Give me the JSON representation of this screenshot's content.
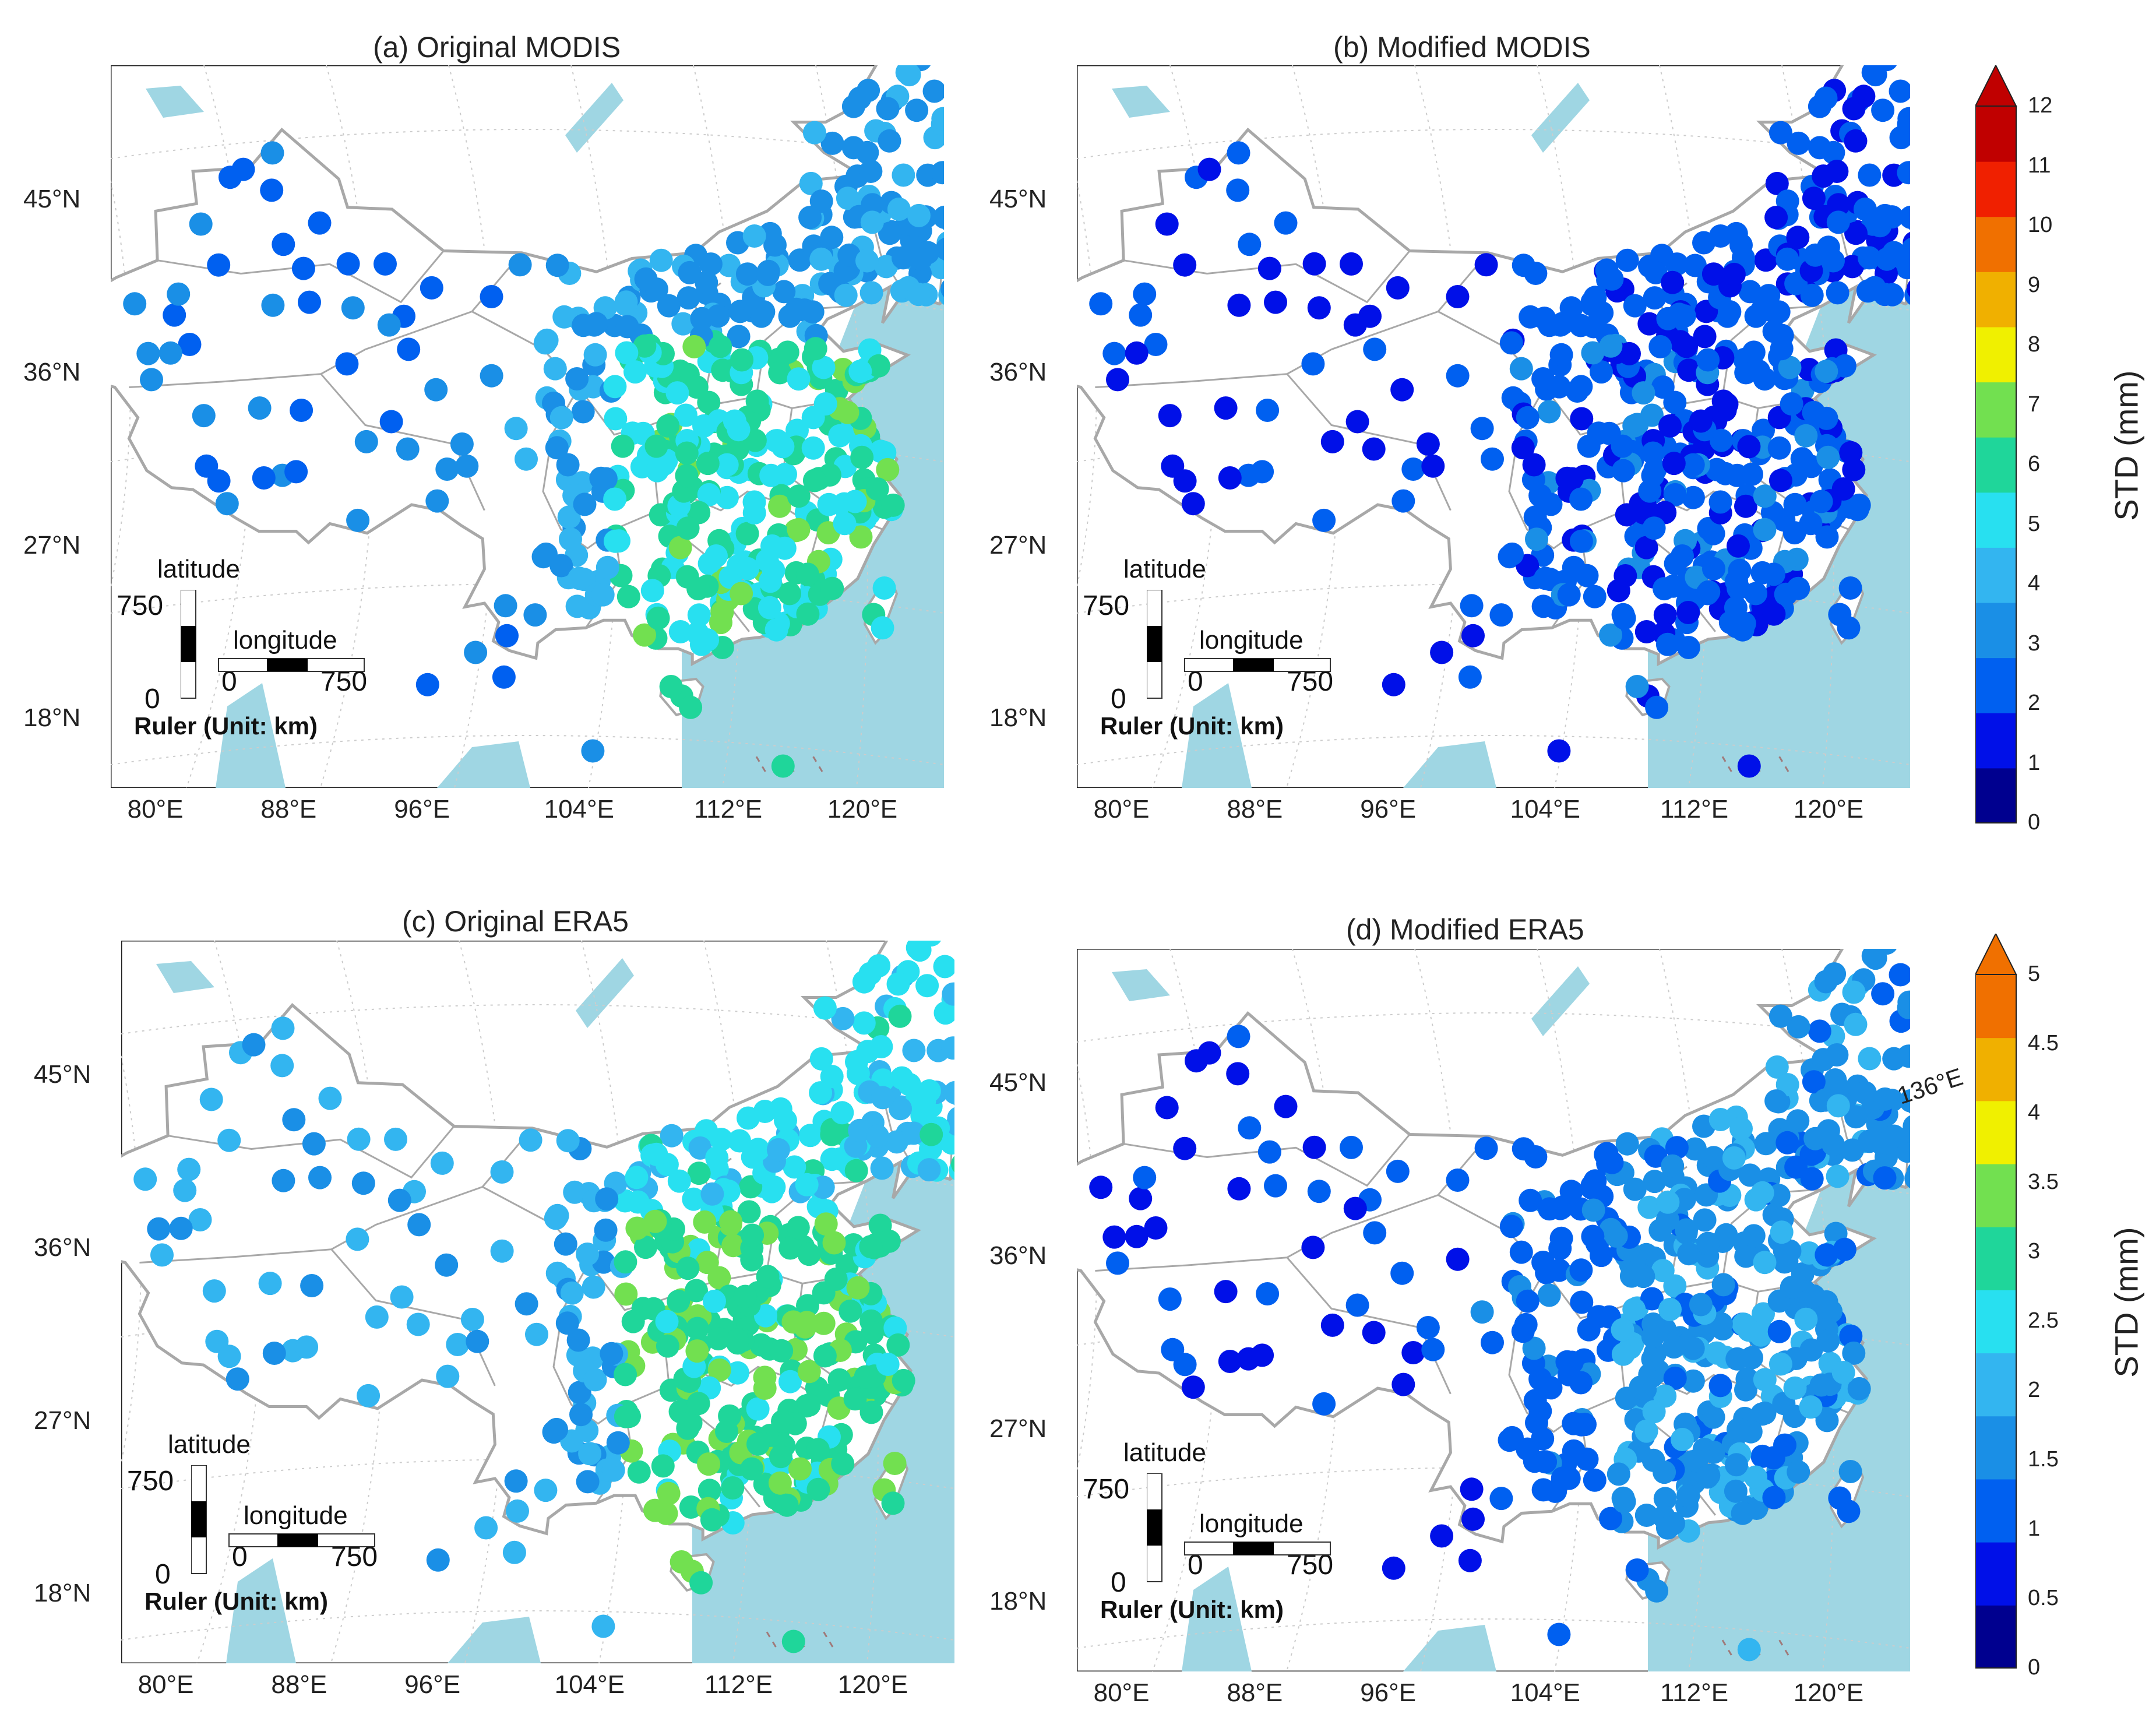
{
  "panels": [
    {
      "id": "a",
      "title": "(a) Original MODIS",
      "scale": "modis",
      "pattern": "orig_modis"
    },
    {
      "id": "b",
      "title": "(b) Modified MODIS",
      "scale": "modis",
      "pattern": "mod_modis"
    },
    {
      "id": "c",
      "title": "(c) Original ERA5",
      "scale": "era5",
      "pattern": "orig_era5"
    },
    {
      "id": "d",
      "title": "(d) Modified ERA5",
      "scale": "era5",
      "pattern": "mod_era5"
    }
  ],
  "latitude_labels": [
    "45°N",
    "36°N",
    "27°N",
    "18°N"
  ],
  "longitude_labels": [
    "80°E",
    "88°E",
    "96°E",
    "104°E",
    "112°E",
    "120°E"
  ],
  "extra_longitude_label": "136°E",
  "ruler": {
    "latitude_label": "latitude",
    "longitude_label": "longitude",
    "max_label": "750",
    "zero_label": "0",
    "caption": "Ruler (Unit: km)"
  },
  "colorbars": [
    {
      "id": "modis",
      "title": "STD (mm)",
      "ticks": [
        "0",
        "1",
        "2",
        "3",
        "4",
        "5",
        "6",
        "7",
        "8",
        "9",
        "10",
        "11",
        "12"
      ],
      "colors": [
        "#00008f",
        "#0010e8",
        "#0060f0",
        "#1a8fe6",
        "#33b5f0",
        "#28e0f0",
        "#1fd69a",
        "#72e050",
        "#f0f000",
        "#f0b000",
        "#f07000",
        "#f02000",
        "#c00000"
      ],
      "arrow_color": "#c00000"
    },
    {
      "id": "era5",
      "title": "STD (mm)",
      "ticks": [
        "0",
        "0.5",
        "1",
        "1.5",
        "2",
        "2.5",
        "3",
        "3.5",
        "4",
        "4.5",
        "5"
      ],
      "colors": [
        "#00008f",
        "#0010e8",
        "#0060f0",
        "#1a8fe6",
        "#33b5f0",
        "#28e0f0",
        "#1fd69a",
        "#72e050",
        "#f0f000",
        "#f0b000",
        "#f07000"
      ],
      "arrow_color": "#f07000"
    }
  ],
  "colors": {
    "sea": "#9fd6e3",
    "land": "#ffffff",
    "border": "#a8a8a8",
    "grid": "#cccccc"
  }
}
